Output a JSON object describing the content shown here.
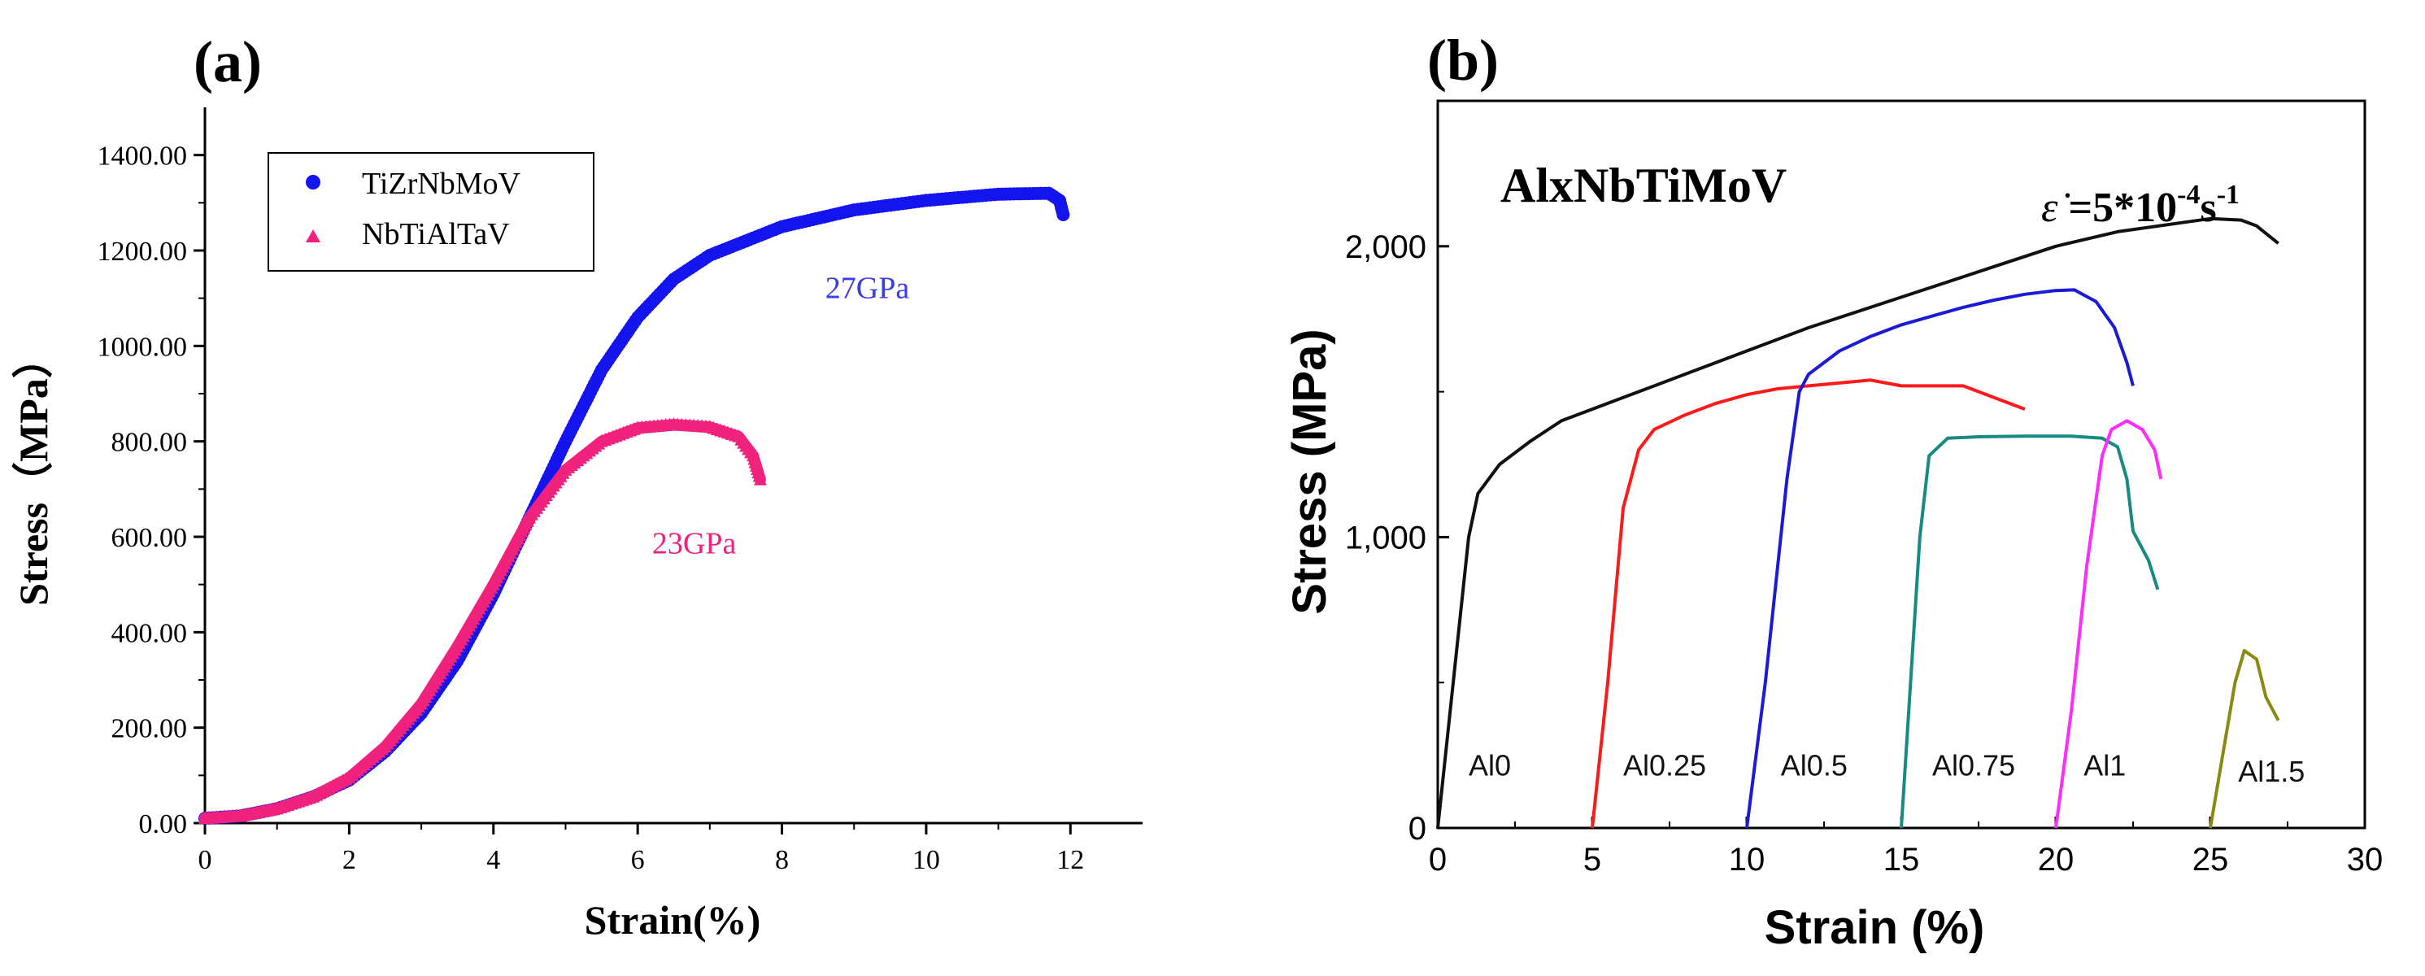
{
  "chart_data": [
    {
      "panel": "(a)",
      "type": "scatter",
      "xlabel": "Strain(%)",
      "ylabel": "Stress（MPa）",
      "xlim": [
        0,
        13
      ],
      "ylim": [
        0,
        1500
      ],
      "x_ticks": [
        0,
        2,
        4,
        6,
        8,
        10,
        12
      ],
      "x_tick_labels": [
        "0",
        "2",
        "4",
        "6",
        "8",
        "10",
        "12"
      ],
      "y_ticks": [
        0,
        200,
        400,
        600,
        800,
        1000,
        1200,
        1400
      ],
      "y_tick_labels": [
        "0.00",
        "200.00",
        "400.00",
        "600.00",
        "800.00",
        "1000.00",
        "1200.00",
        "1400.00"
      ],
      "legend": {
        "position": "top-left",
        "entries": [
          "TiZrNbMoV",
          "NbTiAlTaV"
        ]
      },
      "grid": false,
      "series": [
        {
          "name": "TiZrNbMoV",
          "color": "#1414ee",
          "marker": "circle",
          "points": [
            [
              0,
              10
            ],
            [
              0.5,
              15
            ],
            [
              1,
              30
            ],
            [
              1.5,
              55
            ],
            [
              2,
              90
            ],
            [
              2.5,
              150
            ],
            [
              3,
              230
            ],
            [
              3.5,
              340
            ],
            [
              4,
              480
            ],
            [
              4.5,
              640
            ],
            [
              5,
              800
            ],
            [
              5.5,
              950
            ],
            [
              6,
              1060
            ],
            [
              6.5,
              1140
            ],
            [
              7,
              1190
            ],
            [
              8,
              1250
            ],
            [
              9,
              1285
            ],
            [
              10,
              1305
            ],
            [
              11,
              1318
            ],
            [
              11.7,
              1320
            ],
            [
              11.85,
              1305
            ],
            [
              11.9,
              1275
            ]
          ],
          "annotation": "27GPa"
        },
        {
          "name": "NbTiAlTaV",
          "color": "#f0227e",
          "marker": "triangle",
          "points": [
            [
              0,
              10
            ],
            [
              0.5,
              15
            ],
            [
              1,
              30
            ],
            [
              1.5,
              55
            ],
            [
              2,
              95
            ],
            [
              2.5,
              160
            ],
            [
              3,
              250
            ],
            [
              3.5,
              370
            ],
            [
              4,
              500
            ],
            [
              4.5,
              640
            ],
            [
              5,
              740
            ],
            [
              5.5,
              800
            ],
            [
              6,
              828
            ],
            [
              6.5,
              835
            ],
            [
              7,
              830
            ],
            [
              7.4,
              810
            ],
            [
              7.6,
              770
            ],
            [
              7.7,
              720
            ]
          ],
          "annotation": "23GPa"
        }
      ]
    },
    {
      "panel": "(b)",
      "type": "line",
      "title": "AlxNbTiMoV",
      "strain_rate_label": "ε̇ =5*10-4s-1",
      "strain_rate_parts": {
        "eps": "ε̇",
        "eq": " =5*10",
        "exp1": "-4",
        "unit": "s",
        "exp2": "-1"
      },
      "xlabel": "Strain (%)",
      "ylabel": "Stress (MPa)",
      "xlim": [
        0,
        30
      ],
      "ylim": [
        0,
        2500
      ],
      "x_ticks": [
        0,
        5,
        10,
        15,
        20,
        25,
        30
      ],
      "x_tick_labels": [
        "0",
        "5",
        "10",
        "15",
        "20",
        "25",
        "30"
      ],
      "y_ticks": [
        0,
        1000,
        2000
      ],
      "y_tick_labels": [
        "0",
        "1,000",
        "2,000"
      ],
      "grid": false,
      "series": [
        {
          "name": "Al0",
          "color": "#111111",
          "label_at": [
            1.0,
            180
          ],
          "points": [
            [
              0,
              0
            ],
            [
              0.5,
              500
            ],
            [
              1,
              1000
            ],
            [
              1.3,
              1150
            ],
            [
              2,
              1250
            ],
            [
              3,
              1330
            ],
            [
              4,
              1400
            ],
            [
              6,
              1480
            ],
            [
              8,
              1560
            ],
            [
              10,
              1640
            ],
            [
              12,
              1720
            ],
            [
              14,
              1790
            ],
            [
              16,
              1860
            ],
            [
              18,
              1930
            ],
            [
              20,
              2000
            ],
            [
              22,
              2050
            ],
            [
              24,
              2080
            ],
            [
              25,
              2095
            ],
            [
              26,
              2090
            ],
            [
              26.5,
              2070
            ],
            [
              27.2,
              2010
            ]
          ]
        },
        {
          "name": "Al0.25",
          "color": "#ff1a1a",
          "label_at": [
            6.0,
            180
          ],
          "points": [
            [
              5,
              0
            ],
            [
              5.5,
              500
            ],
            [
              6,
              1100
            ],
            [
              6.5,
              1300
            ],
            [
              7,
              1370
            ],
            [
              8,
              1420
            ],
            [
              9,
              1460
            ],
            [
              10,
              1490
            ],
            [
              11,
              1510
            ],
            [
              12,
              1520
            ],
            [
              13,
              1530
            ],
            [
              14,
              1540
            ],
            [
              15,
              1520
            ],
            [
              16,
              1520
            ],
            [
              17,
              1520
            ],
            [
              18,
              1480
            ],
            [
              19,
              1440
            ]
          ]
        },
        {
          "name": "Al0.5",
          "color": "#1a1ad8",
          "label_at": [
            11.1,
            180
          ],
          "points": [
            [
              10,
              0
            ],
            [
              10.6,
              500
            ],
            [
              11.3,
              1200
            ],
            [
              11.7,
              1500
            ],
            [
              12,
              1560
            ],
            [
              13,
              1640
            ],
            [
              14,
              1690
            ],
            [
              15,
              1730
            ],
            [
              16,
              1760
            ],
            [
              17,
              1790
            ],
            [
              18,
              1815
            ],
            [
              19,
              1835
            ],
            [
              20,
              1848
            ],
            [
              20.6,
              1850
            ],
            [
              21.3,
              1810
            ],
            [
              21.9,
              1720
            ],
            [
              22.3,
              1600
            ],
            [
              22.5,
              1520
            ]
          ]
        },
        {
          "name": "Al0.75",
          "color": "#178a82",
          "label_at": [
            16.0,
            180
          ],
          "points": [
            [
              15,
              0
            ],
            [
              15.3,
              500
            ],
            [
              15.6,
              1000
            ],
            [
              15.9,
              1280
            ],
            [
              16.5,
              1340
            ],
            [
              17.5,
              1345
            ],
            [
              19,
              1347
            ],
            [
              20.5,
              1347
            ],
            [
              21.5,
              1340
            ],
            [
              22,
              1310
            ],
            [
              22.3,
              1200
            ],
            [
              22.5,
              1020
            ],
            [
              23,
              920
            ],
            [
              23.3,
              820
            ]
          ]
        },
        {
          "name": "Al1",
          "color": "#ff2bff",
          "label_at": [
            20.9,
            180
          ],
          "points": [
            [
              20,
              0
            ],
            [
              20.5,
              400
            ],
            [
              21,
              900
            ],
            [
              21.5,
              1280
            ],
            [
              21.8,
              1370
            ],
            [
              22.3,
              1400
            ],
            [
              22.8,
              1370
            ],
            [
              23.2,
              1300
            ],
            [
              23.4,
              1200
            ]
          ]
        },
        {
          "name": "Al1.5",
          "color": "#8a8a10",
          "label_at": [
            25.9,
            160
          ],
          "points": [
            [
              25,
              0
            ],
            [
              25.4,
              250
            ],
            [
              25.8,
              500
            ],
            [
              26.1,
              610
            ],
            [
              26.5,
              580
            ],
            [
              26.8,
              450
            ],
            [
              27.2,
              370
            ]
          ]
        }
      ]
    }
  ],
  "panels": {
    "a": {
      "label": "(a)",
      "label_color": "#000000"
    },
    "b": {
      "label": "(b)",
      "label_color": "#000000"
    }
  }
}
